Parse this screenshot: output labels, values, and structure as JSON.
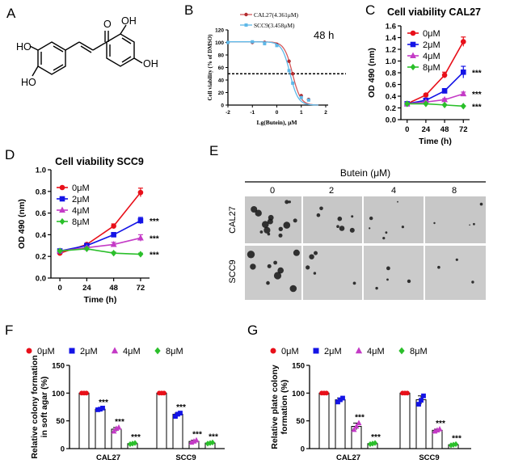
{
  "panels": {
    "A": {
      "label": "A",
      "groups": [
        "HO",
        "OH",
        "HO",
        "OH"
      ]
    },
    "B": {
      "label": "B",
      "annotation": "48 h"
    },
    "E": {
      "label": "E",
      "treatment_label": "Butein (μM)",
      "doses": [
        "0",
        "2",
        "4",
        "8"
      ],
      "cell_lines": [
        "CAL27",
        "SCC9"
      ]
    }
  },
  "colors": {
    "red": "#e8101a",
    "blue": "#1414e6",
    "magenta": "#c43bc6",
    "green": "#2bbf2b",
    "cal27_curve": "#d4585a",
    "scc9_curve": "#5eb8e8"
  },
  "chart_data": [
    {
      "id": "B",
      "type": "scatter",
      "xlabel": "Lg(Butein), μM",
      "ylabel": "Cell viability (% of DMSO)",
      "xlim": [
        -2,
        2
      ],
      "ylim": [
        0,
        120
      ],
      "x_ticks": [
        "-2",
        "-1",
        "0",
        "1",
        "2"
      ],
      "y_ticks": [
        "0",
        "20",
        "40",
        "60",
        "80",
        "100",
        "120"
      ],
      "reference_line_y": 50,
      "x": [
        -2,
        -1,
        -0.5,
        0,
        0.5,
        0.65,
        1,
        1.3
      ],
      "series": [
        {
          "name": "CAL27(4.361μM)",
          "values": [
            100,
            100,
            100,
            97,
            70,
            50,
            15,
            9
          ]
        },
        {
          "name": "SCC9(3.458μM)",
          "values": [
            100,
            101,
            98,
            95,
            55,
            35,
            12,
            8
          ]
        }
      ]
    },
    {
      "id": "C",
      "type": "line",
      "title": "Cell viability  CAL27",
      "xlabel": "Time (h)",
      "ylabel": "OD 490 (nm)",
      "xlim": [
        -8,
        80
      ],
      "ylim": [
        0,
        1.6
      ],
      "x": [
        0,
        24,
        48,
        72
      ],
      "x_ticks": [
        "0",
        "24",
        "48",
        "72"
      ],
      "y_ticks": [
        "0.0",
        "0.2",
        "0.4",
        "0.6",
        "0.8",
        "1.0",
        "1.2",
        "1.4",
        "1.6"
      ],
      "series": [
        {
          "name": "0μM",
          "values": [
            0.27,
            0.42,
            0.76,
            1.33
          ],
          "err": [
            0.02,
            0.02,
            0.05,
            0.08
          ],
          "sig": ""
        },
        {
          "name": "2μM",
          "values": [
            0.27,
            0.33,
            0.49,
            0.81
          ],
          "err": [
            0.02,
            0.02,
            0.04,
            0.1
          ],
          "sig": "***"
        },
        {
          "name": "4μM",
          "values": [
            0.27,
            0.3,
            0.34,
            0.44
          ],
          "err": [
            0.02,
            0.02,
            0.02,
            0.03
          ],
          "sig": "***"
        },
        {
          "name": "8μM",
          "values": [
            0.27,
            0.27,
            0.25,
            0.23
          ],
          "err": [
            0.01,
            0.01,
            0.01,
            0.01
          ],
          "sig": "***"
        }
      ]
    },
    {
      "id": "D",
      "type": "line",
      "title": "Cell viability  SCC9",
      "xlabel": "Time (h)",
      "ylabel": "OD 490 (nm)",
      "xlim": [
        -8,
        80
      ],
      "ylim": [
        0,
        1.0
      ],
      "x": [
        0,
        24,
        48,
        72
      ],
      "x_ticks": [
        "0",
        "24",
        "48",
        "72"
      ],
      "y_ticks": [
        "0.0",
        "0.2",
        "0.4",
        "0.6",
        "0.8",
        "1.0"
      ],
      "series": [
        {
          "name": "0μM",
          "values": [
            0.23,
            0.31,
            0.48,
            0.79
          ],
          "err": [
            0.01,
            0.01,
            0.02,
            0.04
          ],
          "sig": ""
        },
        {
          "name": "2μM",
          "values": [
            0.25,
            0.3,
            0.4,
            0.53
          ],
          "err": [
            0.01,
            0.01,
            0.02,
            0.03
          ],
          "sig": "***"
        },
        {
          "name": "4μM",
          "values": [
            0.25,
            0.28,
            0.31,
            0.37
          ],
          "err": [
            0.01,
            0.01,
            0.02,
            0.03
          ],
          "sig": "***"
        },
        {
          "name": "8μM",
          "values": [
            0.25,
            0.27,
            0.23,
            0.22
          ],
          "err": [
            0.01,
            0.01,
            0.01,
            0.01
          ],
          "sig": "***"
        }
      ]
    },
    {
      "id": "F",
      "type": "bar",
      "ylabel": "Relative colony formation in soft agar (%)",
      "ylim": [
        0,
        150
      ],
      "y_ticks": [
        "0",
        "50",
        "100",
        "150"
      ],
      "categories": [
        "CAL27",
        "SCC9"
      ],
      "series": [
        {
          "name": "0μM",
          "marker": "circle",
          "values": [
            100,
            100
          ],
          "points": [
            [
              100,
              100,
              100
            ],
            [
              100,
              100,
              100
            ]
          ],
          "sig": [
            "",
            ""
          ]
        },
        {
          "name": "2μM",
          "marker": "square",
          "values": [
            71,
            62
          ],
          "points": [
            [
              70,
              71,
              73
            ],
            [
              58,
              62,
              64
            ]
          ],
          "sig": [
            "***",
            "***"
          ]
        },
        {
          "name": "4μM",
          "marker": "triangle",
          "values": [
            35,
            13
          ],
          "points": [
            [
              31,
              36,
              38
            ],
            [
              11,
              13,
              15
            ]
          ],
          "sig": [
            "***",
            "***"
          ]
        },
        {
          "name": "8μM",
          "marker": "diamond",
          "values": [
            9,
            10
          ],
          "points": [
            [
              8,
              9,
              10
            ],
            [
              9,
              10,
              11
            ]
          ],
          "sig": [
            "***",
            "***"
          ]
        }
      ]
    },
    {
      "id": "G",
      "type": "bar",
      "ylabel": "Relative plate colony formation (%)",
      "ylim": [
        0,
        150
      ],
      "y_ticks": [
        "0",
        "50",
        "100",
        "150"
      ],
      "categories": [
        "CAL27",
        "SCC9"
      ],
      "series": [
        {
          "name": "0μM",
          "marker": "circle",
          "values": [
            100,
            100
          ],
          "points": [
            [
              100,
              100,
              100
            ],
            [
              100,
              100,
              100
            ]
          ],
          "sig": [
            "",
            ""
          ]
        },
        {
          "name": "2μM",
          "marker": "square",
          "values": [
            88,
            88
          ],
          "points": [
            [
              84,
              88,
              91
            ],
            [
              80,
              87,
              95
            ]
          ],
          "sig": [
            "",
            ""
          ]
        },
        {
          "name": "4μM",
          "marker": "triangle",
          "values": [
            40,
            33
          ],
          "points": [
            [
              34,
              40,
              46
            ],
            [
              31,
              33,
              35
            ]
          ],
          "sig": [
            "***",
            "***"
          ]
        },
        {
          "name": "8μM",
          "marker": "diamond",
          "values": [
            9,
            7
          ],
          "points": [
            [
              8,
              9,
              10
            ],
            [
              6,
              7,
              8
            ]
          ],
          "sig": [
            "***",
            "***"
          ]
        }
      ]
    }
  ]
}
